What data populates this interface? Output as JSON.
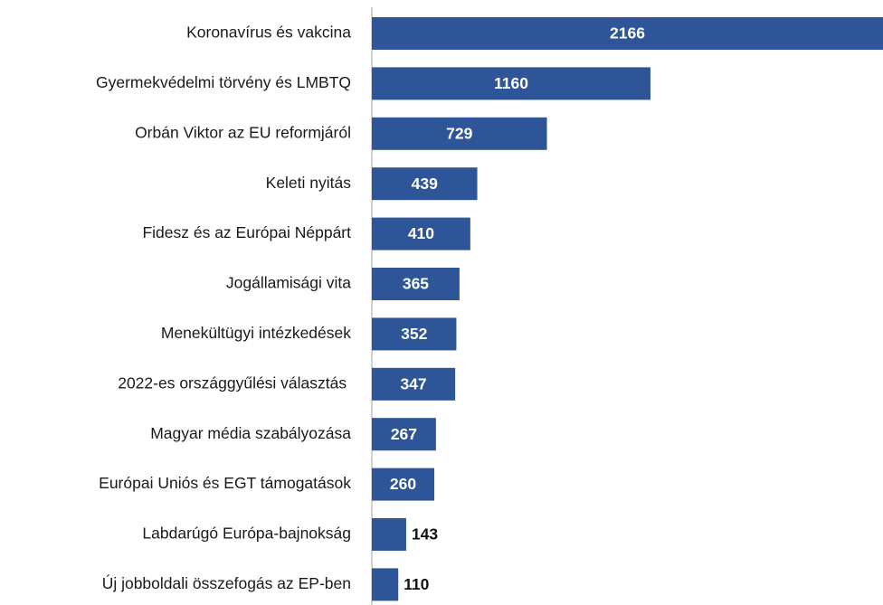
{
  "chart_data": {
    "type": "bar",
    "orientation": "horizontal",
    "categories": [
      "Koronavírus és vakcina",
      "Gyermekvédelmi törvény és LMBTQ",
      "Orbán Viktor az EU reformjáról",
      "Keleti nyitás",
      "Fidesz és az Európai Néppárt",
      "Jogállamisági vita",
      "Menekültügyi intézkedések",
      "2022-es országgyűlési választás ",
      "Magyar média szabályozása",
      "Európai Uniós és EGT támogatások",
      "Labdarúgó Európa-bajnokság",
      "Új jobboldali összefogás az EP-ben"
    ],
    "values": [
      2166,
      1160,
      729,
      439,
      410,
      365,
      352,
      347,
      267,
      260,
      143,
      110
    ],
    "color": "#2e5597"
  }
}
